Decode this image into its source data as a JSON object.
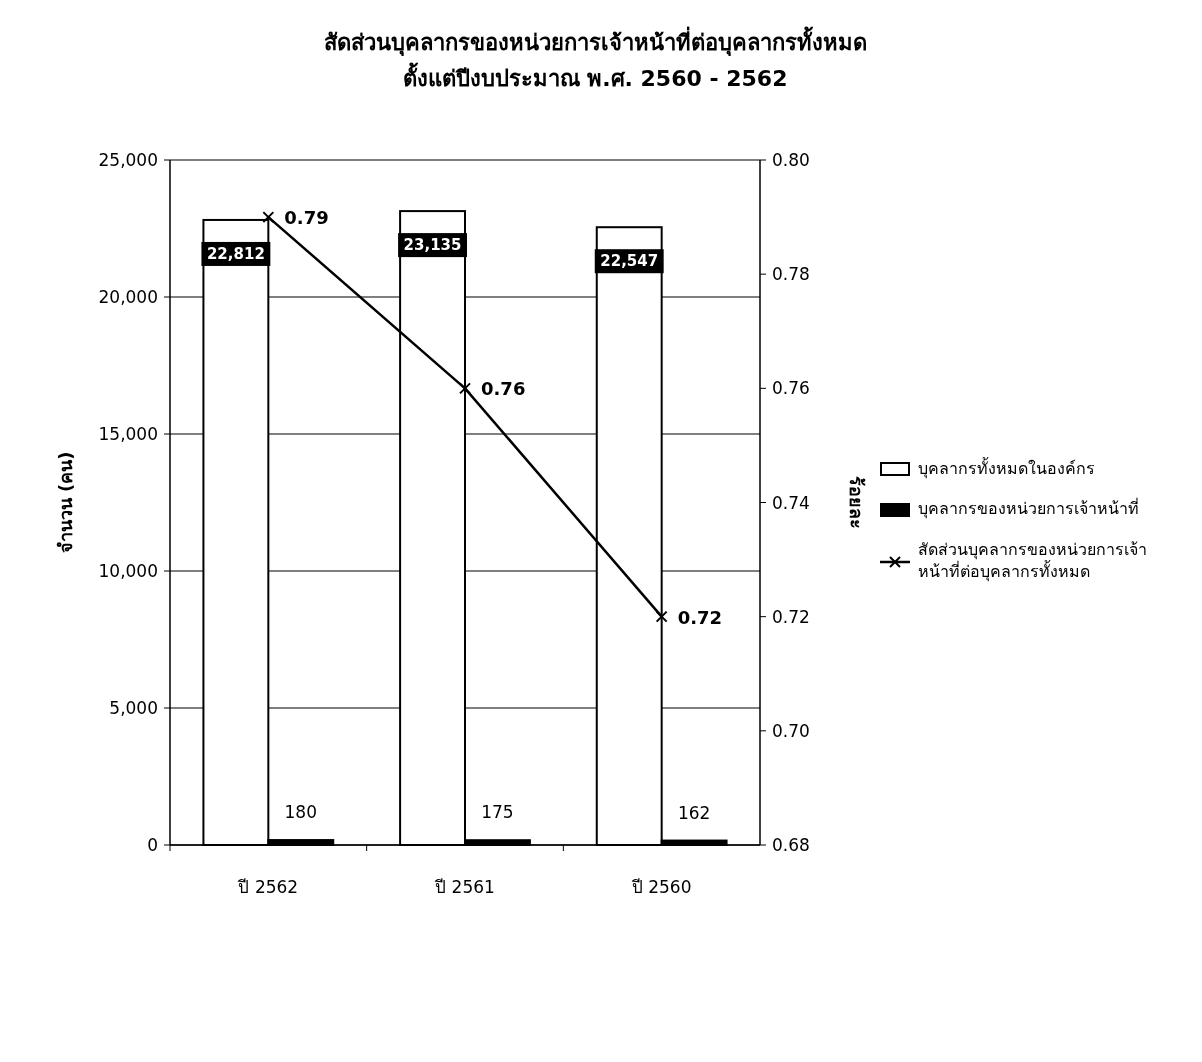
{
  "chart_data": {
    "type": "bar",
    "title": "สัดส่วนบุคลากรของหน่วยการเจ้าหน้าที่ต่อบุคลากรทั้งหมด",
    "subtitle": "ตั้งแต่ปีงบประมาณ พ.ศ. 2560 - 2562",
    "ylabel": "จำนวน (คน)",
    "y2label": "ร้อยละ",
    "categories": [
      "ปี 2562",
      "ปี 2561",
      "ปี 2560"
    ],
    "series": [
      {
        "name": "บุคลากรทั้งหมดในองค์กร",
        "color": "#ffffff",
        "values": [
          22812,
          23135,
          22547
        ],
        "value_labels": [
          "22,812",
          "23,135",
          "22,547"
        ]
      },
      {
        "name": "บุคลากรของหน่วยการเจ้าหน้าที่",
        "color": "#000000",
        "values": [
          180,
          175,
          162
        ]
      },
      {
        "name": "สัดส่วนบุคลากรของหน่วยการเจ้าหน้าที่ต่อบุคลากรทั้งหมด",
        "type": "line",
        "axis": "y2",
        "color": "#000000",
        "marker": "cross",
        "values": [
          0.79,
          0.76,
          0.72
        ]
      }
    ],
    "ylim": [
      0,
      25000
    ],
    "yticks": [
      0,
      {
        "value": 5000,
        "label": "5,000"
      },
      {
        "value": 10000,
        "label": "10,000"
      },
      {
        "value": 15000,
        "label": "15,000"
      },
      {
        "value": 20000,
        "label": "20,000"
      },
      {
        "value": 25000,
        "label": "25,000"
      }
    ],
    "y2lim": [
      0.68,
      0.8
    ],
    "y2ticks": [
      0.68,
      {
        "value": 0.7,
        "label": "0.70"
      },
      0.72,
      0.74,
      0.76,
      0.78,
      {
        "value": 0.8,
        "label": "0.80"
      }
    ],
    "grid": "y",
    "legend": "right",
    "data_labels": true
  }
}
